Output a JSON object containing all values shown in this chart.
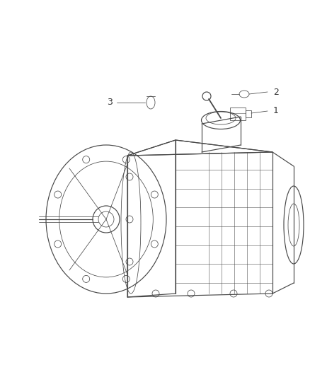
{
  "bg_color": "#ffffff",
  "line_color": "#555555",
  "text_color": "#333333",
  "component_color": "#555555",
  "font_size": 9,
  "label1": "1",
  "label2": "2",
  "label3": "3"
}
